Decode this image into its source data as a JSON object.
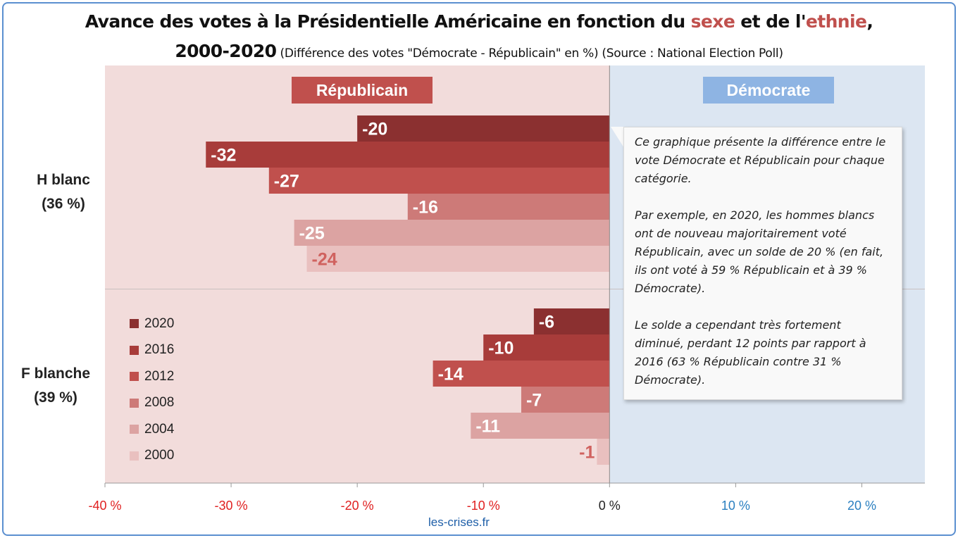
{
  "title": {
    "line1_a": "Avance des votes à la Présidentielle Américaine en fonction du ",
    "line1_sexe": "sexe",
    "line1_b": " et de l'",
    "line1_ethnie": "ethnie",
    "line1_c": ",",
    "line2_years": "2000-2020",
    "line2_sub": " (Différence des votes \"Démocrate - Républicain\" en %) (Source : National Election Poll)"
  },
  "zones": {
    "republican_label": "Républicain",
    "democrat_label": "Démocrate"
  },
  "groups": [
    {
      "name": "H blanc",
      "share": "(36 %)"
    },
    {
      "name": "F blanche",
      "share": "(39 %)"
    }
  ],
  "note": {
    "paragraphs": [
      "Ce graphique présente la différence entre le vote Démocrate et Républicain pour chaque catégorie.",
      "Par exemple, en 2020, les hommes blancs ont de nouveau majoritairement voté Républicain, avec un solde de 20 % (en fait, ils ont voté à 59 % Républicain et à 39 % Démocrate).",
      "Le solde a cependant très fortement diminué, perdant 12 points par rapport à 2016 (63 % Républicain contre 31 % Démocrate)."
    ]
  },
  "credit": "les-crises.fr",
  "colors": {
    "rep_zone": "#f2dcdb",
    "dem_zone": "#dce6f2",
    "rep_tag": "#c0504d",
    "dem_tag": "#8eb4e3",
    "tick_negative": "#e02020",
    "tick_positive": "#2a7fc0"
  },
  "chart_data": {
    "type": "bar",
    "orientation": "horizontal",
    "categories": [
      "H blanc",
      "F blanche"
    ],
    "series": [
      {
        "name": "2020",
        "color": "#8b3030",
        "values": [
          -20,
          -6
        ]
      },
      {
        "name": "2016",
        "color": "#a83c3a",
        "values": [
          -32,
          -10
        ]
      },
      {
        "name": "2012",
        "color": "#c0504d",
        "values": [
          -27,
          -14
        ]
      },
      {
        "name": "2008",
        "color": "#cd7a78",
        "values": [
          -16,
          -7
        ]
      },
      {
        "name": "2004",
        "color": "#dca3a2",
        "values": [
          -25,
          -11
        ]
      },
      {
        "name": "2000",
        "color": "#e9c0bf",
        "values": [
          -24,
          -1
        ]
      }
    ],
    "xlim": [
      -40,
      25
    ],
    "xticks": [
      -40,
      -30,
      -20,
      -10,
      0,
      10,
      20
    ],
    "xtick_labels": [
      "-40 %",
      "-30 %",
      "-20 %",
      "-10 %",
      "0 %",
      "10 %",
      "20 %"
    ],
    "legend": "left",
    "grid": false
  }
}
